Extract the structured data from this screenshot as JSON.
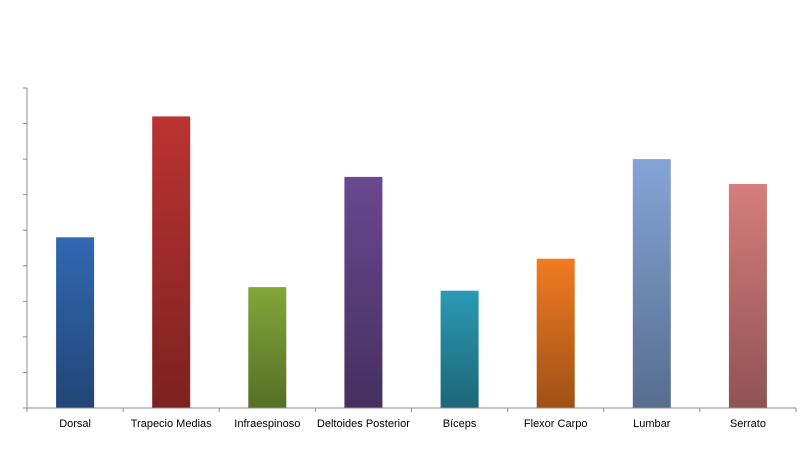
{
  "chart_data": {
    "type": "bar",
    "categories": [
      "Dorsal",
      "Trapecio Medias",
      "Infraespinoso",
      "Deltoides Posterior",
      "Bíceps",
      "Flexor Carpo",
      "Lumbar",
      "Serrato"
    ],
    "values": [
      4.8,
      8.2,
      3.4,
      6.5,
      3.3,
      4.2,
      7.0,
      6.3
    ],
    "colors": [
      "#2f62a8",
      "#b0302e",
      "#7a9e36",
      "#634488",
      "#2891aa",
      "#e3741f",
      "#7d9bcb",
      "#cb7676"
    ],
    "ylim": [
      0,
      9
    ],
    "y_tick_count": 9,
    "y_tick_labels": "none",
    "grid": false,
    "legend": "none",
    "title": "",
    "xlabel": "",
    "ylabel": ""
  }
}
